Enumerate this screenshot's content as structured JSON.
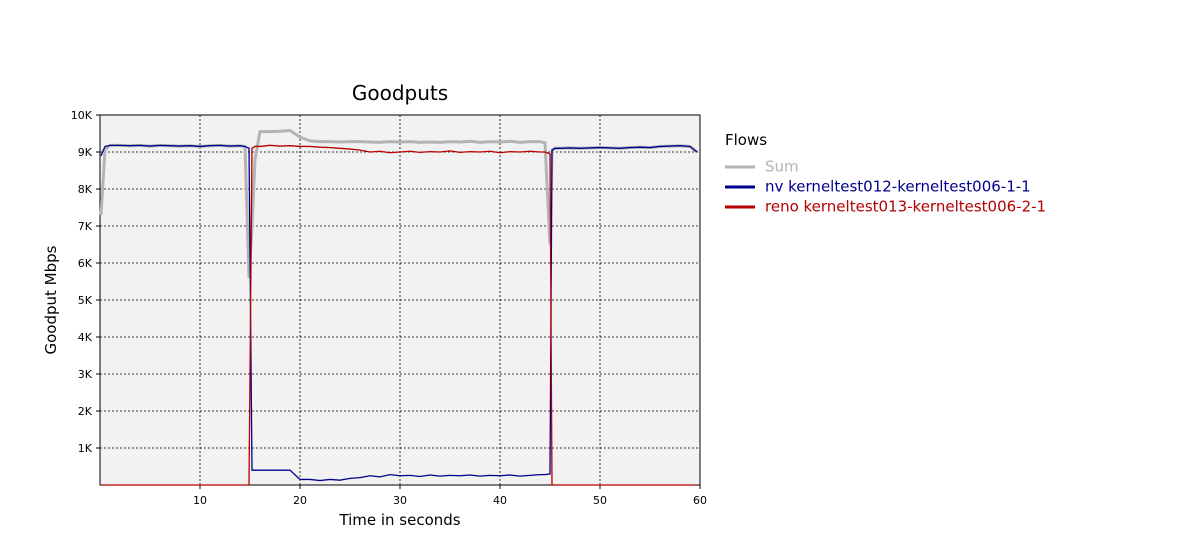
{
  "chart_data": {
    "type": "line",
    "title": "Goodputs",
    "x_label": "Time in seconds",
    "y_label": "Goodput Mbps",
    "legend_title": "Flows",
    "legend_position": "right",
    "grid": true,
    "xlim": [
      0,
      60
    ],
    "xticks": [
      10,
      20,
      30,
      40,
      50,
      60
    ],
    "ylim": [
      0,
      10000
    ],
    "yticks": [
      {
        "value": 1000,
        "label": "1K"
      },
      {
        "value": 2000,
        "label": "2K"
      },
      {
        "value": 3000,
        "label": "3K"
      },
      {
        "value": 4000,
        "label": "4K"
      },
      {
        "value": 5000,
        "label": "5K"
      },
      {
        "value": 6000,
        "label": "6K"
      },
      {
        "value": 7000,
        "label": "7K"
      },
      {
        "value": 8000,
        "label": "8K"
      },
      {
        "value": 9000,
        "label": "9K"
      },
      {
        "value": 10000,
        "label": "10K"
      }
    ],
    "x": [
      0.1,
      0.5,
      1,
      2,
      3,
      4,
      5,
      6,
      7,
      8,
      9,
      10,
      11,
      12,
      13,
      14,
      14.5,
      14.9,
      15.2,
      15.5,
      16,
      17,
      18,
      19,
      20,
      21,
      22,
      23,
      24,
      25,
      26,
      27,
      28,
      29,
      30,
      31,
      32,
      33,
      34,
      35,
      36,
      37,
      38,
      39,
      40,
      41,
      42,
      43,
      44,
      44.5,
      45,
      45.2,
      45.5,
      46,
      47,
      48,
      49,
      50,
      51,
      52,
      53,
      54,
      55,
      56,
      57,
      58,
      59,
      59.7
    ],
    "series": [
      {
        "name": "Sum",
        "color": "#b4b4b4",
        "values": [
          7300,
          9050,
          9180,
          9180,
          9170,
          9180,
          9160,
          9180,
          9170,
          9160,
          9170,
          9150,
          9170,
          9180,
          9160,
          9170,
          9150,
          5600,
          7000,
          8800,
          9550,
          9550,
          9560,
          9580,
          9400,
          9300,
          9280,
          9280,
          9270,
          9280,
          9280,
          9270,
          9260,
          9280,
          9270,
          9280,
          9260,
          9270,
          9260,
          9280,
          9270,
          9290,
          9260,
          9280,
          9270,
          9290,
          9260,
          9280,
          9280,
          9250,
          6500,
          9050,
          9100,
          9100,
          9110,
          9100,
          9110,
          9120,
          9110,
          9100,
          9120,
          9130,
          9120,
          9150,
          9160,
          9170,
          9150,
          9000
        ]
      },
      {
        "name": "nv kerneltest012-kerneltest006-1-1",
        "color": "#00008c",
        "values": [
          8900,
          9150,
          9180,
          9180,
          9170,
          9180,
          9160,
          9180,
          9170,
          9160,
          9170,
          9150,
          9170,
          9180,
          9160,
          9170,
          9150,
          9100,
          400,
          400,
          400,
          400,
          400,
          400,
          150,
          150,
          120,
          150,
          130,
          180,
          200,
          250,
          220,
          280,
          250,
          260,
          230,
          270,
          240,
          260,
          250,
          270,
          240,
          260,
          250,
          270,
          240,
          260,
          280,
          280,
          300,
          9050,
          9100,
          9100,
          9110,
          9100,
          9110,
          9120,
          9110,
          9100,
          9120,
          9130,
          9120,
          9150,
          9160,
          9170,
          9150,
          9000
        ]
      },
      {
        "name": "reno kerneltest013-kerneltest006-2-1",
        "color": "#b40000",
        "values": [
          0,
          0,
          0,
          0,
          0,
          0,
          0,
          0,
          0,
          0,
          0,
          0,
          0,
          0,
          0,
          0,
          0,
          0,
          9100,
          9150,
          9150,
          9180,
          9160,
          9170,
          9150,
          9150,
          9130,
          9120,
          9100,
          9080,
          9050,
          9000,
          9020,
          8980,
          9000,
          9020,
          8990,
          9010,
          9000,
          9030,
          8990,
          9010,
          9000,
          9020,
          8980,
          9010,
          9000,
          9020,
          9000,
          9000,
          8950,
          0,
          0,
          0,
          0,
          0,
          0,
          0,
          0,
          0,
          0,
          0,
          0,
          0,
          0,
          0,
          0,
          0
        ]
      }
    ]
  }
}
